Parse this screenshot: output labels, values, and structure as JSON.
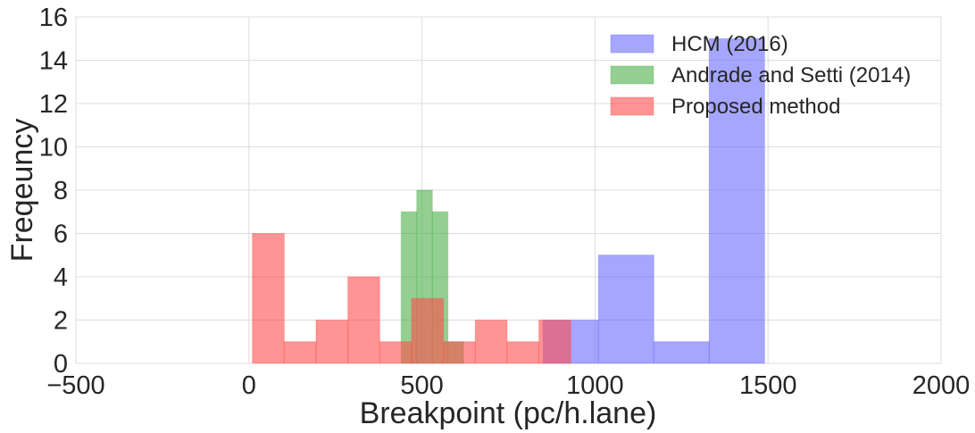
{
  "chart_data": {
    "type": "bar",
    "subtype": "overlapping-histogram",
    "title": "",
    "xlabel": "Breakpoint (pc/h.lane)",
    "ylabel": "Freqeuncy",
    "xlim": [
      -500,
      2000
    ],
    "ylim": [
      0,
      16
    ],
    "xticks": [
      "−500",
      "0",
      "500",
      "1000",
      "1500",
      "2000"
    ],
    "yticks": [
      "0",
      "2",
      "4",
      "6",
      "8",
      "10",
      "12",
      "14",
      "16"
    ],
    "grid": true,
    "legend_position": "top-right",
    "series": [
      {
        "name": "HCM (2016)",
        "color": "#6a6aff",
        "bins": [
          {
            "x0": 850,
            "x1": 1010,
            "count": 2
          },
          {
            "x0": 1010,
            "x1": 1170,
            "count": 5
          },
          {
            "x0": 1170,
            "x1": 1330,
            "count": 1
          },
          {
            "x0": 1330,
            "x1": 1490,
            "count": 15
          }
        ]
      },
      {
        "name": "Andrade and Setti (2014)",
        "color": "#4daf4a",
        "bins": [
          {
            "x0": 440,
            "x1": 485,
            "count": 7
          },
          {
            "x0": 485,
            "x1": 530,
            "count": 8
          },
          {
            "x0": 530,
            "x1": 575,
            "count": 7
          },
          {
            "x0": 575,
            "x1": 620,
            "count": 1
          }
        ]
      },
      {
        "name": "Proposed method",
        "color": "#ff4c4c",
        "bins": [
          {
            "x0": 10,
            "x1": 102,
            "count": 6
          },
          {
            "x0": 102,
            "x1": 194,
            "count": 1
          },
          {
            "x0": 194,
            "x1": 286,
            "count": 2
          },
          {
            "x0": 286,
            "x1": 378,
            "count": 4
          },
          {
            "x0": 378,
            "x1": 470,
            "count": 1
          },
          {
            "x0": 470,
            "x1": 562,
            "count": 3
          },
          {
            "x0": 562,
            "x1": 654,
            "count": 1
          },
          {
            "x0": 654,
            "x1": 746,
            "count": 2
          },
          {
            "x0": 746,
            "x1": 838,
            "count": 1
          },
          {
            "x0": 838,
            "x1": 930,
            "count": 2
          }
        ]
      }
    ]
  }
}
